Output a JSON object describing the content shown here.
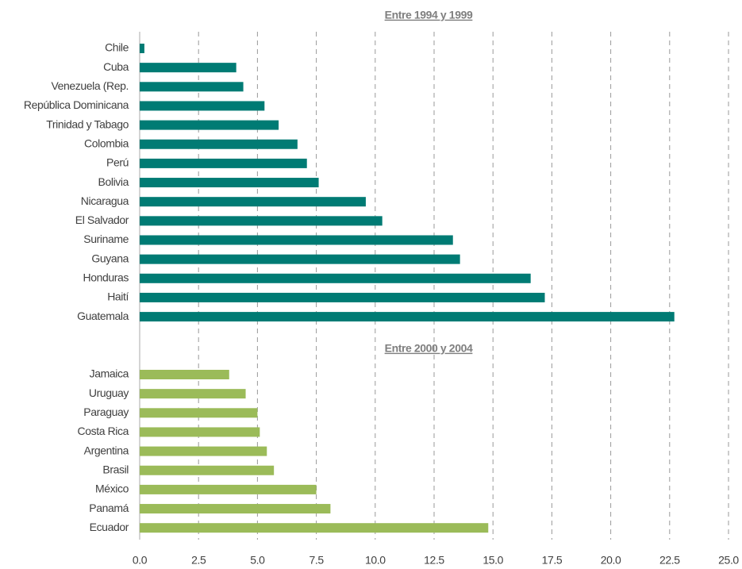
{
  "chart_data": {
    "type": "bar",
    "orientation": "horizontal",
    "grid": true,
    "xlim": [
      0,
      25
    ],
    "xticks": [
      {
        "value": 0,
        "label": "0.0"
      },
      {
        "value": 2.5,
        "label": "2.5"
      },
      {
        "value": 5,
        "label": "5.0"
      },
      {
        "value": 7.5,
        "label": "7.5"
      },
      {
        "value": 10,
        "label": "10.0"
      },
      {
        "value": 12.5,
        "label": "12.5"
      },
      {
        "value": 15,
        "label": "15.0"
      },
      {
        "value": 17.5,
        "label": "17.5"
      },
      {
        "value": 20,
        "label": "20.0"
      },
      {
        "value": 22.5,
        "label": "22.5"
      },
      {
        "value": 25,
        "label": "25.0"
      }
    ],
    "groups": [
      {
        "title": "Entre 1994 y 1999",
        "color": "#007b74",
        "categories": [
          "Chile",
          "Cuba",
          "Venezuela (Rep.",
          "República Dominicana",
          "Trinidad y  Tabago",
          "Colombia",
          "Perú",
          "Bolivia",
          "Nicaragua",
          "El Salvador",
          "Suriname",
          "Guyana",
          "Honduras",
          "Haití",
          "Guatemala"
        ],
        "values": [
          0.2,
          4.1,
          4.4,
          5.3,
          5.9,
          6.7,
          7.1,
          7.6,
          9.6,
          10.3,
          13.3,
          13.6,
          16.6,
          17.2,
          22.7
        ]
      },
      {
        "title": "Entre 2000 y 2004",
        "color": "#9bbb59",
        "categories": [
          "Jamaica",
          "Uruguay",
          "Paraguay",
          "Costa Rica",
          "Argentina",
          "Brasil",
          "México",
          "Panamá",
          "Ecuador"
        ],
        "values": [
          3.8,
          4.5,
          5.0,
          5.1,
          5.4,
          5.7,
          7.5,
          8.1,
          14.8
        ]
      }
    ]
  }
}
